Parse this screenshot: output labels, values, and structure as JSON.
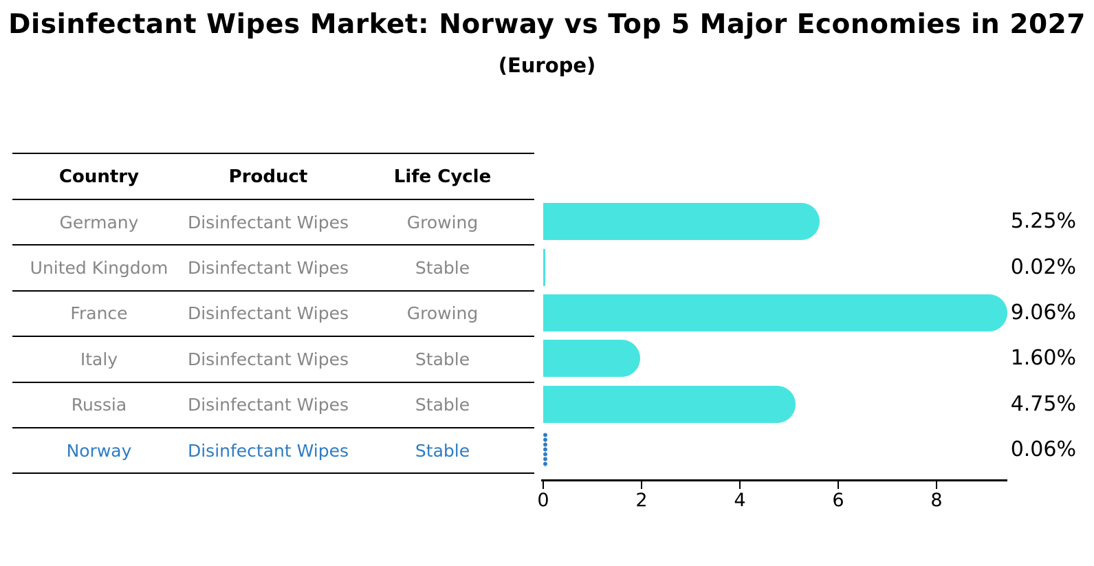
{
  "title": "Disinfectant Wipes Market: Norway vs Top 5 Major Economies in 2027",
  "subtitle": "(Europe)",
  "table": {
    "headers": [
      "Country",
      "Product",
      "Life Cycle"
    ],
    "rows": [
      {
        "country": "Germany",
        "product": "Disinfectant Wipes",
        "life_cycle": "Growing",
        "highlighted": false
      },
      {
        "country": "United Kingdom",
        "product": "Disinfectant Wipes",
        "life_cycle": "Stable",
        "highlighted": false
      },
      {
        "country": "France",
        "product": "Disinfectant Wipes",
        "life_cycle": "Growing",
        "highlighted": false
      },
      {
        "country": "Italy",
        "product": "Disinfectant Wipes",
        "life_cycle": "Stable",
        "highlighted": false
      },
      {
        "country": "Russia",
        "product": "Disinfectant Wipes",
        "life_cycle": "Stable",
        "highlighted": false
      },
      {
        "country": "Norway",
        "product": "Disinfectant Wipes",
        "life_cycle": "Stable",
        "highlighted": true
      }
    ]
  },
  "chart_data": {
    "type": "bar",
    "orientation": "horizontal",
    "title": "Disinfectant Wipes Market: Norway vs Top 5 Major Economies in 2027",
    "subtitle": "(Europe)",
    "categories": [
      "Germany",
      "United Kingdom",
      "France",
      "Italy",
      "Russia",
      "Norway"
    ],
    "values": [
      5.25,
      0.02,
      9.06,
      1.6,
      4.75,
      0.06
    ],
    "value_labels": [
      "5.25%",
      "0.02%",
      "9.06%",
      "1.60%",
      "4.75%",
      "0.06%"
    ],
    "x_tick_labels": [
      "0",
      "2",
      "4",
      "6",
      "8"
    ],
    "x_tick_values": [
      0,
      2,
      4,
      6,
      8
    ],
    "xlim": [
      0,
      9.45
    ],
    "grid": false,
    "legend": false,
    "highlight_index": 5,
    "bar_color": "#48e5e0",
    "highlight_color": "#2e7cc4"
  },
  "colors": {
    "background": "#ffffff",
    "bar": "#48e5e0",
    "highlight_blue": "#2e7cc4",
    "row_text_gray": "#878787",
    "header_text": "#000000",
    "axis_line": "#000000"
  }
}
